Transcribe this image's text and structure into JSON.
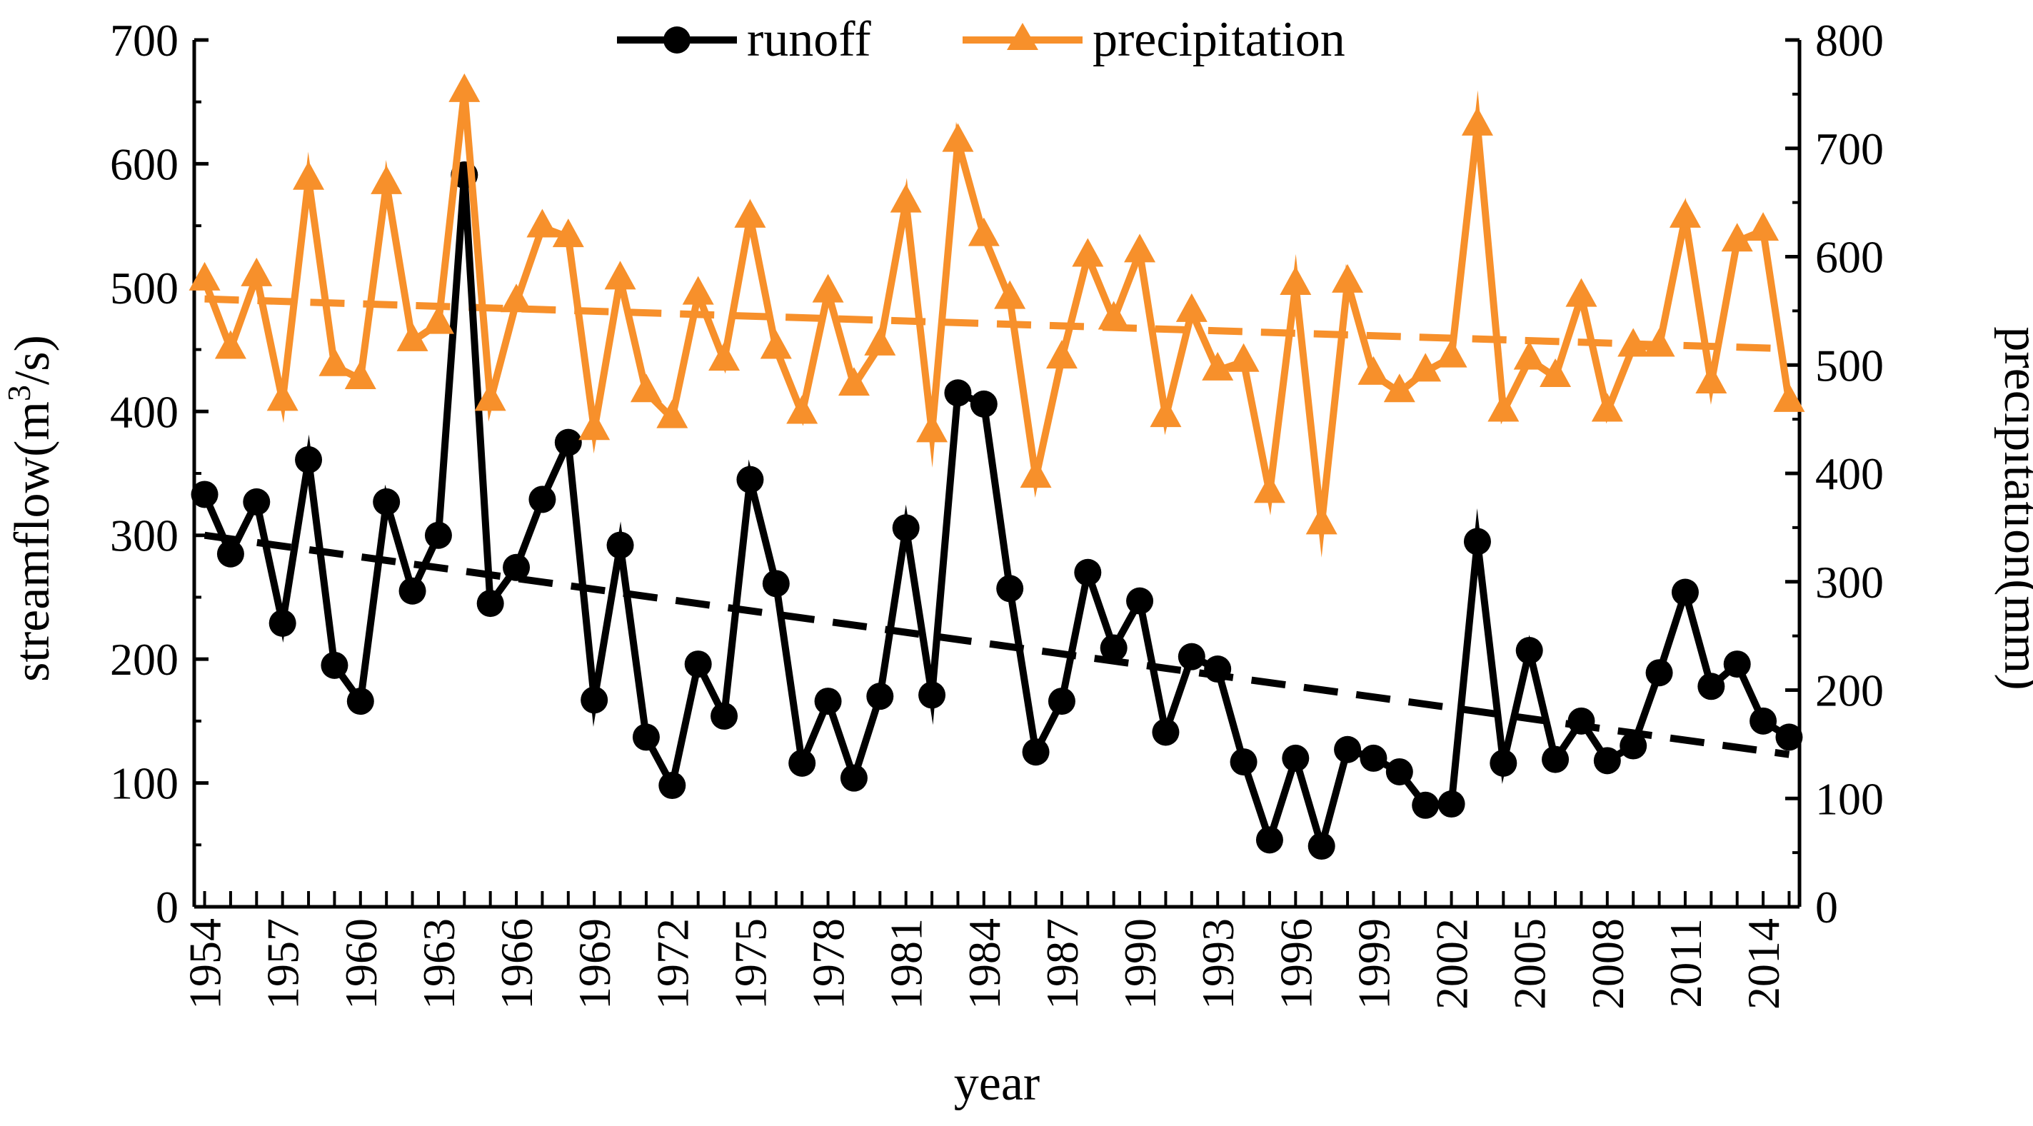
{
  "chart_data": {
    "type": "line",
    "xlabel": "year",
    "ylabel_left": "streamflow(m³/s)",
    "ylabel_left_parts": {
      "base": "streamflow(m",
      "sup": "3",
      "tail": "/s)"
    },
    "ylabel_right": "precipitation(mm)",
    "ylim_left": [
      0,
      700
    ],
    "ylim_right": [
      0,
      800
    ],
    "yticks_left": [
      0,
      100,
      200,
      300,
      400,
      500,
      600,
      700
    ],
    "yticks_right": [
      0,
      100,
      200,
      300,
      400,
      500,
      600,
      700,
      800
    ],
    "xlim": [
      1954,
      2015
    ],
    "xtick_labels": [
      "1954",
      "1957",
      "1960",
      "1963",
      "1966",
      "1969",
      "1972",
      "1975",
      "1978",
      "1981",
      "1984",
      "1987",
      "1990",
      "1993",
      "1996",
      "1999",
      "2002",
      "2005",
      "2008",
      "2011",
      "2014"
    ],
    "legend_position": "top-center",
    "x": [
      1954,
      1955,
      1956,
      1957,
      1958,
      1959,
      1960,
      1961,
      1962,
      1963,
      1964,
      1965,
      1966,
      1967,
      1968,
      1969,
      1970,
      1971,
      1972,
      1973,
      1974,
      1975,
      1976,
      1977,
      1978,
      1979,
      1980,
      1981,
      1982,
      1983,
      1984,
      1985,
      1986,
      1987,
      1988,
      1989,
      1990,
      1991,
      1992,
      1993,
      1994,
      1995,
      1996,
      1997,
      1998,
      1999,
      2000,
      2001,
      2002,
      2003,
      2004,
      2005,
      2006,
      2007,
      2008,
      2009,
      2010,
      2011,
      2012,
      2013,
      2014,
      2015
    ],
    "series": [
      {
        "name": "runoff",
        "axis": "left",
        "color": "#000000",
        "marker": "circle",
        "values": [
          333,
          285,
          327,
          229,
          361,
          195,
          166,
          327,
          255,
          300,
          591,
          245,
          274,
          329,
          375,
          167,
          292,
          137,
          98,
          196,
          154,
          345,
          261,
          116,
          166,
          104,
          170,
          306,
          171,
          415,
          406,
          257,
          125,
          166,
          270,
          209,
          247,
          141,
          202,
          192,
          117,
          54,
          120,
          49,
          127,
          120,
          109,
          82,
          83,
          295,
          116,
          207,
          119,
          150,
          118,
          130,
          189,
          254,
          178,
          196,
          150,
          137
        ]
      },
      {
        "name": "precipitation",
        "axis": "right",
        "color": "#F7902B",
        "marker": "triangle",
        "values": [
          578,
          515,
          582,
          467,
          671,
          499,
          487,
          667,
          522,
          538,
          752,
          467,
          558,
          627,
          618,
          440,
          579,
          475,
          451,
          565,
          504,
          636,
          515,
          455,
          567,
          481,
          518,
          650,
          438,
          706,
          619,
          561,
          396,
          506,
          600,
          542,
          604,
          452,
          549,
          495,
          503,
          382,
          574,
          353,
          576,
          491,
          475,
          494,
          507,
          721,
          457,
          505,
          489,
          563,
          457,
          517,
          517,
          636,
          483,
          614,
          624,
          466
        ]
      }
    ],
    "trendlines": [
      {
        "name": "runoff trend",
        "axis": "left",
        "color": "#000000",
        "start": [
          1954,
          300
        ],
        "end": [
          2015,
          123
        ]
      },
      {
        "name": "precipitation trend",
        "axis": "right",
        "color": "#F7902B",
        "start": [
          1954,
          561
        ],
        "end": [
          2015,
          515
        ]
      }
    ]
  }
}
